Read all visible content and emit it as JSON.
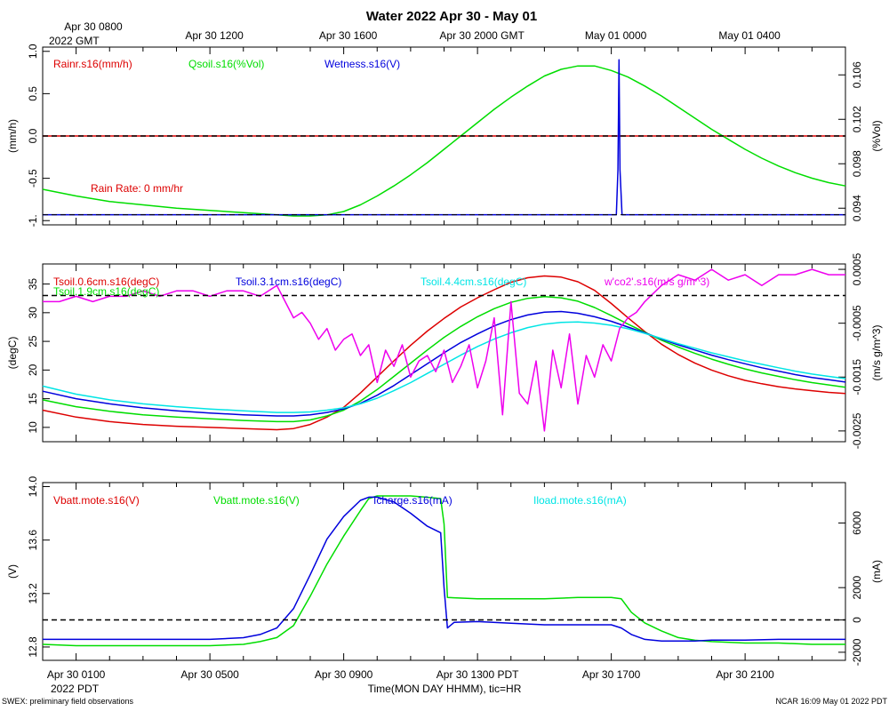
{
  "page": {
    "title": "Water 2022 Apr 30 - May 01",
    "footer_left": "SWEX: preliminary field observations",
    "footer_right": "NCAR 16:09 May 01 2022 PDT",
    "xlabel": "Time(MON DAY HHMM), tic=HR",
    "gmt_ticks": [
      "Apr 30 0800",
      "Apr 30 1200",
      "Apr 30 1600",
      "Apr 30 2000 GMT",
      "May 01 0000",
      "May 01 0400"
    ],
    "gmt_year": "2022 GMT",
    "pdt_ticks": [
      "Apr 30 0100",
      "Apr 30 0500",
      "Apr 30 0900",
      "Apr 30 1300 PDT",
      "Apr 30 1700",
      "Apr 30 2100"
    ],
    "pdt_year": "2022 PDT"
  },
  "chart_data": [
    {
      "type": "line",
      "panel": "rain",
      "x_range": [
        0,
        24
      ],
      "x_unit": "hours since Apr 30 0000 PDT",
      "left_axis": {
        "label": "(mm/h)",
        "range": [
          -1.05,
          1.05
        ],
        "ticks": [
          "-1.",
          "-0.5",
          "0.0",
          "0.5",
          "1.0"
        ],
        "tick_values": [
          -1,
          -0.5,
          0,
          0.5,
          1
        ]
      },
      "right_axis": {
        "label": "(%Vol)",
        "range": [
          0.0925,
          0.1085
        ],
        "ticks": [
          "0.094",
          "0.098",
          "0.102",
          "0.106"
        ],
        "tick_values": [
          0.094,
          0.098,
          0.102,
          0.106
        ]
      },
      "reference_value": 0.0,
      "annotation": "Rain Rate: 0 mm/hr",
      "series": [
        {
          "name": "Rainr.s16(mm/h)",
          "color": "#dd0000",
          "axis": "left",
          "x": [
            0,
            24
          ],
          "y": [
            0.0,
            0.0
          ]
        },
        {
          "name": "Qsoil.s16(%Vol)",
          "color": "#00dd00",
          "axis": "right",
          "x": [
            0,
            1,
            2,
            3,
            4,
            5,
            6,
            7,
            7.5,
            8,
            8.5,
            9,
            9.5,
            10,
            10.5,
            11,
            11.5,
            12,
            12.5,
            13,
            13.5,
            14,
            14.5,
            15,
            15.5,
            16,
            16.5,
            17,
            17.5,
            18,
            18.5,
            19,
            19.5,
            20,
            20.5,
            21,
            21.5,
            22,
            22.5,
            23,
            23.5,
            24
          ],
          "y": [
            0.0957,
            0.0951,
            0.0946,
            0.0943,
            0.094,
            0.0938,
            0.0936,
            0.0934,
            0.0933,
            0.0933,
            0.0934,
            0.0937,
            0.0943,
            0.0951,
            0.096,
            0.097,
            0.0981,
            0.0993,
            0.1005,
            0.1017,
            0.1029,
            0.104,
            0.105,
            0.1059,
            0.1065,
            0.1068,
            0.1068,
            0.1064,
            0.1058,
            0.105,
            0.1041,
            0.1031,
            0.1021,
            0.1011,
            0.1002,
            0.0993,
            0.0985,
            0.0978,
            0.0972,
            0.0967,
            0.0963,
            0.096
          ]
        },
        {
          "name": "Wetness.s16(V)",
          "color": "#0000dd",
          "axis": "left",
          "x": [
            0,
            17.15,
            17.2,
            17.23,
            17.26,
            17.32,
            24
          ],
          "y": [
            -0.93,
            -0.93,
            -0.4,
            0.9,
            -0.4,
            -0.93,
            -0.93
          ]
        }
      ]
    },
    {
      "type": "line",
      "panel": "tsoil",
      "x_range": [
        0,
        24
      ],
      "left_axis": {
        "label": "(degC)",
        "range": [
          7.5,
          38.5
        ],
        "ticks": [
          "10",
          "15",
          "20",
          "25",
          "30",
          "35"
        ],
        "tick_values": [
          10,
          15,
          20,
          25,
          30,
          35
        ]
      },
      "right_axis": {
        "label": "(m/s g/m^3)",
        "range": [
          -0.0027,
          0.0006
        ],
        "ticks": [
          "-0.0025",
          "-0.0015",
          "-0.0005",
          "0.0005"
        ],
        "tick_values": [
          -0.0025,
          -0.0015,
          -0.0005,
          0.0005
        ]
      },
      "reference_value": 33,
      "series": [
        {
          "name": "Tsoil.0.6cm.s16(degC)",
          "color": "#dd0000",
          "axis": "left",
          "x": [
            0,
            1,
            2,
            3,
            4,
            5,
            6,
            7,
            7.5,
            8,
            8.5,
            9,
            9.5,
            10,
            10.5,
            11,
            11.5,
            12,
            12.5,
            13,
            13.5,
            14,
            14.5,
            15,
            15.5,
            16,
            16.5,
            17,
            17.5,
            18,
            18.5,
            19,
            19.5,
            20,
            20.5,
            21,
            21.5,
            22,
            22.5,
            23,
            23.5,
            24
          ],
          "y": [
            13.0,
            11.8,
            11.0,
            10.5,
            10.2,
            10.0,
            9.8,
            9.6,
            9.8,
            10.5,
            11.8,
            13.5,
            16.0,
            18.8,
            21.6,
            24.3,
            26.8,
            29.0,
            31.0,
            32.6,
            34.0,
            35.3,
            36.1,
            36.4,
            36.2,
            35.4,
            33.9,
            31.6,
            29.1,
            26.7,
            24.5,
            22.7,
            21.2,
            20.0,
            19.0,
            18.2,
            17.6,
            17.1,
            16.7,
            16.4,
            16.1,
            15.9
          ]
        },
        {
          "name": "Tsoil.1.9cm.s16(degC)",
          "color": "#00dd00",
          "axis": "left",
          "x": [
            0,
            1,
            2,
            3,
            4,
            5,
            6,
            7,
            7.5,
            8,
            8.5,
            9,
            9.5,
            10,
            10.5,
            11,
            11.5,
            12,
            12.5,
            13,
            13.5,
            14,
            14.5,
            15,
            15.5,
            16,
            16.5,
            17,
            17.5,
            18,
            18.5,
            19,
            19.5,
            20,
            20.5,
            21,
            21.5,
            22,
            22.5,
            23,
            23.5,
            24
          ],
          "y": [
            14.8,
            13.6,
            12.8,
            12.2,
            11.8,
            11.5,
            11.2,
            11.0,
            11.0,
            11.3,
            12.0,
            13.0,
            14.6,
            16.6,
            18.9,
            21.2,
            23.5,
            25.7,
            27.6,
            29.3,
            30.7,
            31.8,
            32.5,
            32.8,
            32.6,
            32.0,
            30.9,
            29.5,
            28.0,
            26.6,
            25.2,
            24.0,
            22.9,
            21.9,
            21.0,
            20.2,
            19.5,
            18.9,
            18.3,
            17.8,
            17.4,
            17.0
          ]
        },
        {
          "name": "Tsoil.3.1cm.s16(degC)",
          "color": "#0000dd",
          "axis": "left",
          "x": [
            0,
            1,
            2,
            3,
            4,
            5,
            6,
            7,
            7.5,
            8,
            8.5,
            9,
            9.5,
            10,
            10.5,
            11,
            11.5,
            12,
            12.5,
            13,
            13.5,
            14,
            14.5,
            15,
            15.5,
            16,
            16.5,
            17,
            17.5,
            18,
            18.5,
            19,
            19.5,
            20,
            20.5,
            21,
            21.5,
            22,
            22.5,
            23,
            23.5,
            24
          ],
          "y": [
            16.3,
            15.0,
            14.1,
            13.4,
            12.9,
            12.5,
            12.2,
            12.0,
            12.0,
            12.2,
            12.6,
            13.2,
            14.2,
            15.6,
            17.3,
            19.2,
            21.1,
            23.0,
            24.8,
            26.3,
            27.7,
            28.8,
            29.6,
            30.1,
            30.2,
            29.9,
            29.3,
            28.5,
            27.5,
            26.5,
            25.4,
            24.4,
            23.5,
            22.6,
            21.8,
            21.1,
            20.4,
            19.8,
            19.2,
            18.7,
            18.3,
            17.9
          ]
        },
        {
          "name": "Tsoil.4.4cm.s16(degC)",
          "color": "#00e5e5",
          "axis": "left",
          "x": [
            0,
            1,
            2,
            3,
            4,
            5,
            6,
            7,
            7.5,
            8,
            8.5,
            9,
            9.5,
            10,
            10.5,
            11,
            11.5,
            12,
            12.5,
            13,
            13.5,
            14,
            14.5,
            15,
            15.5,
            16,
            16.5,
            17,
            17.5,
            18,
            18.5,
            19,
            19.5,
            20,
            20.5,
            21,
            21.5,
            22,
            22.5,
            23,
            23.5,
            24
          ],
          "y": [
            17.2,
            15.8,
            14.8,
            14.1,
            13.6,
            13.2,
            12.9,
            12.6,
            12.6,
            12.7,
            13.0,
            13.4,
            14.1,
            15.1,
            16.4,
            17.8,
            19.4,
            21.0,
            22.6,
            24.1,
            25.4,
            26.5,
            27.4,
            28.0,
            28.3,
            28.4,
            28.2,
            27.8,
            27.2,
            26.4,
            25.5,
            24.6,
            23.8,
            23.0,
            22.3,
            21.6,
            21.0,
            20.4,
            19.8,
            19.3,
            18.9,
            18.5
          ]
        },
        {
          "name": "w'co2'.s16(m/s g/m^3)",
          "color": "#ee00ee",
          "axis": "right",
          "x": [
            0,
            0.5,
            1,
            1.5,
            2,
            2.5,
            3,
            3.5,
            4,
            4.5,
            5,
            5.5,
            6,
            6.5,
            7,
            7.25,
            7.5,
            7.75,
            8,
            8.25,
            8.5,
            8.75,
            9,
            9.25,
            9.5,
            9.75,
            10,
            10.25,
            10.5,
            10.75,
            11,
            11.25,
            11.5,
            11.75,
            12,
            12.25,
            12.5,
            12.75,
            13,
            13.25,
            13.5,
            13.75,
            14,
            14.25,
            14.5,
            14.75,
            15,
            15.25,
            15.5,
            15.75,
            16,
            16.25,
            16.5,
            16.75,
            17,
            17.25,
            17.5,
            17.75,
            18,
            18.5,
            19,
            19.5,
            20,
            20.5,
            21,
            21.5,
            22,
            22.5,
            23,
            23.5,
            24
          ],
          "y": [
            -0.0001,
            -0.0001,
            0.0,
            -0.0001,
            0.0,
            0.0,
            0.0001,
            0.0,
            0.0001,
            0.0001,
            0.0,
            0.0001,
            0.0001,
            0.0,
            0.0002,
            -0.0001,
            -0.0004,
            -0.0003,
            -0.0005,
            -0.0008,
            -0.0006,
            -0.001,
            -0.0008,
            -0.0007,
            -0.0011,
            -0.0009,
            -0.0016,
            -0.001,
            -0.0013,
            -0.0009,
            -0.0015,
            -0.0012,
            -0.0011,
            -0.0014,
            -0.001,
            -0.0016,
            -0.0013,
            -0.0009,
            -0.0017,
            -0.0012,
            -0.0004,
            -0.0022,
            -0.0001,
            -0.0018,
            -0.002,
            -0.0012,
            -0.0025,
            -0.001,
            -0.0017,
            -0.0007,
            -0.002,
            -0.0011,
            -0.0015,
            -0.0009,
            -0.0012,
            -0.0006,
            -0.0004,
            -0.0003,
            -0.0001,
            0.0002,
            0.0004,
            0.0003,
            0.0005,
            0.0003,
            0.0004,
            0.0002,
            0.0004,
            0.0004,
            0.0005,
            0.0004,
            0.0004
          ]
        }
      ]
    },
    {
      "type": "line",
      "panel": "power",
      "x_range": [
        0,
        24
      ],
      "left_axis": {
        "label": "(V)",
        "range": [
          12.7,
          14.03
        ],
        "ticks": [
          "12.8",
          "13.2",
          "13.6",
          "14.0"
        ],
        "tick_values": [
          12.8,
          13.2,
          13.6,
          14.0
        ]
      },
      "right_axis": {
        "label": "(mA)",
        "range": [
          -2500,
          8500
        ],
        "ticks": [
          "-2000",
          "0",
          "2000",
          "6000"
        ],
        "tick_values": [
          -2000,
          0,
          2000,
          6000
        ]
      },
      "reference_value": 0,
      "series": [
        {
          "name": "Vbatt.mote.s16(V)",
          "color": "#dd0000",
          "axis": "left",
          "x": [],
          "y": []
        },
        {
          "name": "Vbatt.mote.s16(V)",
          "color": "#00dd00",
          "axis": "left",
          "x": [
            0,
            1,
            2,
            3,
            4,
            5,
            6,
            6.5,
            7,
            7.5,
            8,
            8.5,
            9,
            9.5,
            9.75,
            10,
            10.5,
            11,
            11.5,
            11.9,
            12.0,
            12.1,
            13,
            14,
            15,
            16,
            17,
            17.3,
            17.6,
            18,
            18.5,
            19,
            19.5,
            20,
            21,
            22,
            23,
            24
          ],
          "y": [
            12.82,
            12.81,
            12.81,
            12.81,
            12.81,
            12.81,
            12.82,
            12.84,
            12.87,
            12.96,
            13.18,
            13.42,
            13.63,
            13.82,
            13.91,
            13.93,
            13.93,
            13.93,
            13.92,
            13.91,
            13.72,
            13.17,
            13.16,
            13.16,
            13.16,
            13.17,
            13.17,
            13.16,
            13.06,
            12.98,
            12.92,
            12.87,
            12.85,
            12.84,
            12.83,
            12.83,
            12.82,
            12.82
          ]
        },
        {
          "name": "Icharge.s16(mA)",
          "color": "#0000dd",
          "axis": "right",
          "x": [
            0,
            1,
            2,
            3,
            4,
            5,
            6,
            6.5,
            7,
            7.5,
            8,
            8.5,
            9,
            9.5,
            9.75,
            10,
            10.5,
            11,
            11.5,
            11.9,
            12.0,
            12.1,
            12.3,
            13,
            14,
            15,
            16,
            17,
            17.3,
            17.6,
            18,
            18.5,
            19,
            19.5,
            20,
            21,
            22,
            23,
            24
          ],
          "y": [
            -1200,
            -1200,
            -1200,
            -1200,
            -1200,
            -1200,
            -1100,
            -900,
            -500,
            700,
            2800,
            5000,
            6400,
            7400,
            7600,
            7600,
            7300,
            6600,
            5800,
            5400,
            2000,
            -500,
            -150,
            -100,
            -200,
            -300,
            -300,
            -300,
            -500,
            -900,
            -1200,
            -1300,
            -1300,
            -1300,
            -1250,
            -1250,
            -1200,
            -1200,
            -1200
          ]
        },
        {
          "name": "Iload.mote.s16(mA)",
          "color": "#00e5e5",
          "axis": "right",
          "x": [],
          "y": []
        }
      ]
    }
  ]
}
